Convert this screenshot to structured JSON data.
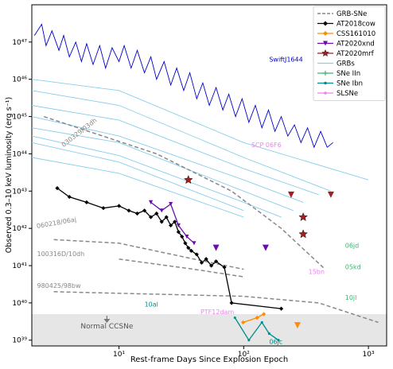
{
  "chart_data": {
    "type": "line",
    "xlabel": "Rest-frame Days Since Explosion Epoch",
    "ylabel": "Observed 0.3–10 keV luminosity (erg s⁻¹)",
    "xscale": "log",
    "yscale": "log",
    "xlim": [
      2.0,
      1400
    ],
    "ylim": [
      7e+38,
      1e+48
    ],
    "x_ticks": [
      {
        "value": 10,
        "label": "10¹"
      },
      {
        "value": 100,
        "label": "10²"
      },
      {
        "value": 1000,
        "label": "10³"
      }
    ],
    "y_ticks": [
      {
        "value": 1e+39,
        "label": "10³⁹"
      },
      {
        "value": 1e+40,
        "label": "10⁴⁰"
      },
      {
        "value": 1e+41,
        "label": "10⁴¹"
      },
      {
        "value": 1e+42,
        "label": "10⁴²"
      },
      {
        "value": 1e+43,
        "label": "10⁴³"
      },
      {
        "value": 1e+44,
        "label": "10⁴⁴"
      },
      {
        "value": 1e+45,
        "label": "10⁴⁵"
      },
      {
        "value": 1e+46,
        "label": "10⁴⁶"
      },
      {
        "value": 1e+47,
        "label": "10⁴⁷"
      }
    ],
    "legend_position": "top-right",
    "legend": [
      {
        "label": "GRB-SNe",
        "color": "#888888",
        "style": "dashed",
        "marker": "none"
      },
      {
        "label": "AT2018cow",
        "color": "#000000",
        "style": "solid",
        "marker": "diamond"
      },
      {
        "label": "CSS161010",
        "color": "#ff8c00",
        "style": "solid",
        "marker": "diamond"
      },
      {
        "label": "AT2020xnd",
        "color": "#6a0dad",
        "style": "solid",
        "marker": "triangle-down"
      },
      {
        "label": "AT2020mrf",
        "color": "#a31f1f",
        "style": "solid",
        "marker": "star"
      },
      {
        "label": "GRBs",
        "color": "#87ceeb",
        "style": "solid",
        "marker": "none"
      },
      {
        "label": "SNe IIn",
        "color": "#3cb371",
        "style": "solid",
        "marker": "plus"
      },
      {
        "label": "SNe Ibn",
        "color": "#008b8b",
        "style": "solid",
        "marker": "dot"
      },
      {
        "label": "SLSNe",
        "color": "#ee82ee",
        "style": "solid",
        "marker": "dot"
      }
    ],
    "normal_ccsne_band": {
      "label": "Normal CCSNe",
      "y_range": [
        7e+38,
        5e+39
      ],
      "arrow_x": 8
    },
    "series": [
      {
        "name": "SwiftJ1644",
        "color": "#0000cd",
        "points": [
          [
            2.1,
            1.5e+47
          ],
          [
            2.4,
            3e+47
          ],
          [
            2.6,
            8e+46
          ],
          [
            2.9,
            2e+47
          ],
          [
            3.3,
            6e+46
          ],
          [
            3.6,
            1.5e+47
          ],
          [
            4.0,
            4e+46
          ],
          [
            4.5,
            1e+47
          ],
          [
            5.0,
            3e+46
          ],
          [
            5.5,
            9e+46
          ],
          [
            6.2,
            2.5e+46
          ],
          [
            7.0,
            8e+46
          ],
          [
            7.8,
            2e+46
          ],
          [
            8.8,
            7e+46
          ],
          [
            10,
            3e+46
          ],
          [
            11,
            8e+46
          ],
          [
            12.5,
            2e+46
          ],
          [
            14,
            6e+46
          ],
          [
            16,
            1.5e+46
          ],
          [
            18,
            4e+46
          ],
          [
            20,
            1e+46
          ],
          [
            23,
            3e+46
          ],
          [
            26,
            7e+45
          ],
          [
            29,
            2e+46
          ],
          [
            33,
            5e+45
          ],
          [
            37,
            1.5e+46
          ],
          [
            42,
            3e+45
          ],
          [
            47,
            8e+45
          ],
          [
            53,
            2e+45
          ],
          [
            60,
            6e+45
          ],
          [
            68,
            1.5e+45
          ],
          [
            76,
            4e+45
          ],
          [
            86,
            1e+45
          ],
          [
            97,
            3e+45
          ],
          [
            110,
            7e+44
          ],
          [
            124,
            2e+45
          ],
          [
            140,
            5e+44
          ],
          [
            158,
            1.5e+45
          ],
          [
            178,
            4e+44
          ],
          [
            200,
            1e+45
          ],
          [
            226,
            3e+44
          ],
          [
            255,
            6e+44
          ],
          [
            288,
            2e+44
          ],
          [
            325,
            5e+44
          ],
          [
            367,
            1.5e+44
          ],
          [
            414,
            4e+44
          ],
          [
            467,
            1.5e+44
          ],
          [
            520,
            2e+44
          ]
        ]
      },
      {
        "name": "AT2018cow",
        "color": "#000000",
        "points": [
          [
            3.2,
            1.2e+43
          ],
          [
            4.0,
            7e+42
          ],
          [
            5.5,
            5e+42
          ],
          [
            7.5,
            3.5e+42
          ],
          [
            10,
            4e+42
          ],
          [
            12,
            3e+42
          ],
          [
            14,
            2.5e+42
          ],
          [
            16,
            3e+42
          ],
          [
            18,
            2e+42
          ],
          [
            20,
            2.5e+42
          ],
          [
            22,
            1.5e+42
          ],
          [
            24,
            2e+42
          ],
          [
            26,
            1.2e+42
          ],
          [
            28,
            1.5e+42
          ],
          [
            30,
            8e+41
          ],
          [
            32,
            6e+41
          ],
          [
            34,
            4e+41
          ],
          [
            36,
            3e+41
          ],
          [
            38,
            2.5e+41
          ],
          [
            42,
            2e+41
          ],
          [
            46,
            1.2e+41
          ],
          [
            50,
            1.5e+41
          ],
          [
            55,
            1e+41
          ],
          [
            60,
            1.3e+41
          ],
          [
            70,
            9e+40
          ],
          [
            80,
            1e+40
          ],
          [
            200,
            7e+39
          ]
        ]
      },
      {
        "name": "AT2020xnd",
        "color": "#6a0dad",
        "points": [
          [
            18,
            5e+42
          ],
          [
            22,
            3e+42
          ],
          [
            26,
            4.5e+42
          ],
          [
            30,
            1.2e+42
          ],
          [
            35,
            6e+41
          ],
          [
            40,
            4e+41
          ]
        ]
      },
      {
        "name": "CSS161010",
        "color": "#ff8c00",
        "points": [
          [
            99,
            3e+39
          ],
          [
            128,
            4e+39
          ],
          [
            145,
            5e+39
          ]
        ]
      },
      {
        "name": "SNe Ibn",
        "color": "#008b8b",
        "points": [
          [
            85,
            4e+39
          ],
          [
            110,
            1e+39
          ],
          [
            140,
            3e+39
          ],
          [
            160,
            1.5e+39
          ],
          [
            190,
            1e+39
          ]
        ]
      }
    ],
    "grb_sne_lines": [
      {
        "label": "030329/03dh",
        "points": [
          [
            2.5,
            1e+45
          ],
          [
            20,
            1e+44
          ],
          [
            80,
            1e+43
          ],
          [
            200,
            1e+42
          ],
          [
            450,
            8e+40
          ]
        ]
      },
      {
        "label": "060218/06aj",
        "points": [
          [
            3,
            5e+41
          ],
          [
            10,
            4e+41
          ],
          [
            40,
            1.5e+41
          ],
          [
            100,
            8e+40
          ]
        ]
      },
      {
        "label": "100316D/10dh",
        "points": [
          [
            10,
            1.5e+41
          ],
          [
            40,
            8e+40
          ],
          [
            100,
            5e+40
          ]
        ]
      },
      {
        "label": "980425/98bw",
        "points": [
          [
            3,
            2e+40
          ],
          [
            100,
            1.5e+40
          ],
          [
            400,
            1e+40
          ],
          [
            1200,
            3e+39
          ]
        ]
      }
    ],
    "grb_lines": [
      [
        [
          2,
          1e+46
        ],
        [
          10,
          5e+45
        ],
        [
          100,
          2e+44
        ],
        [
          1000,
          2e+43
        ]
      ],
      [
        [
          2,
          5e+45
        ],
        [
          10,
          2e+45
        ],
        [
          100,
          8e+43
        ],
        [
          500,
          1e+43
        ]
      ],
      [
        [
          2,
          2e+45
        ],
        [
          10,
          8e+44
        ],
        [
          100,
          4e+43
        ],
        [
          400,
          8e+42
        ]
      ],
      [
        [
          2,
          1e+45
        ],
        [
          10,
          3e+44
        ],
        [
          100,
          2e+43
        ],
        [
          300,
          5e+42
        ]
      ],
      [
        [
          2,
          5e+44
        ],
        [
          10,
          2e+44
        ],
        [
          100,
          1e+43
        ],
        [
          250,
          3e+42
        ]
      ],
      [
        [
          2,
          3e+44
        ],
        [
          10,
          9e+43
        ],
        [
          100,
          5e+42
        ],
        [
          200,
          2e+42
        ]
      ],
      [
        [
          2,
          2e+44
        ],
        [
          10,
          6e+43
        ],
        [
          100,
          3e+42
        ]
      ],
      [
        [
          2,
          8e+43
        ],
        [
          10,
          3e+43
        ],
        [
          100,
          2e+42
        ]
      ]
    ],
    "annotations": [
      {
        "text": "SwiftJ1644",
        "x": 160,
        "y": 3e+46,
        "color": "#0000cd"
      },
      {
        "text": "030329/03dh",
        "x": 3.6,
        "y": 1.5e+44,
        "color": "#888888",
        "rotate": -38
      },
      {
        "text": "060218/06aj",
        "x": 2.2,
        "y": 1e+42,
        "color": "#888888",
        "rotate": -10
      },
      {
        "text": "100316D/10dh",
        "x": 2.2,
        "y": 1.8e+41,
        "color": "#888888"
      },
      {
        "text": "980425/98bw",
        "x": 2.2,
        "y": 2.5e+40,
        "color": "#888888"
      },
      {
        "text": "SCP 06F6",
        "x": 115,
        "y": 1.5e+44,
        "color": "#ee82ee"
      },
      {
        "text": "15bn",
        "x": 330,
        "y": 6e+40,
        "color": "#ee82ee"
      },
      {
        "text": "PTF12dam",
        "x": 45,
        "y": 5e+39,
        "color": "#ee82ee"
      },
      {
        "text": "10al",
        "x": 16,
        "y": 8e+39,
        "color": "#008b8b"
      },
      {
        "text": "06jc",
        "x": 160,
        "y": 8e+38,
        "color": "#008b8b"
      },
      {
        "text": "06jd",
        "x": 650,
        "y": 3e+41,
        "color": "#3cb371"
      },
      {
        "text": "05kd",
        "x": 650,
        "y": 8e+40,
        "color": "#3cb371"
      },
      {
        "text": "10jl",
        "x": 650,
        "y": 1.2e+40,
        "color": "#3cb371"
      }
    ],
    "scatter_markers": [
      {
        "series": "AT2020mrf",
        "x": 36,
        "y": 2e+43,
        "color": "#a31f1f",
        "marker": "star"
      },
      {
        "series": "AT2020mrf",
        "x": 300,
        "y": 2e+42,
        "color": "#a31f1f",
        "marker": "star"
      },
      {
        "series": "AT2020mrf",
        "x": 300,
        "y": 7e+41,
        "color": "#a31f1f",
        "marker": "star"
      },
      {
        "series": "AT2020mrf",
        "x": 240,
        "y": 8e+42,
        "color": "#a31f1f",
        "marker": "triangle-down"
      },
      {
        "series": "AT2020mrf",
        "x": 500,
        "y": 8e+42,
        "color": "#a31f1f",
        "marker": "triangle-down"
      },
      {
        "series": "AT2020xnd",
        "x": 60,
        "y": 3e+41,
        "color": "#6a0dad",
        "marker": "triangle-down"
      },
      {
        "series": "AT2020xnd",
        "x": 150,
        "y": 3e+41,
        "color": "#6a0dad",
        "marker": "triangle-down"
      },
      {
        "series": "CSS161010",
        "x": 270,
        "y": 2.5e+39,
        "color": "#ff8c00",
        "marker": "triangle-down"
      }
    ]
  }
}
